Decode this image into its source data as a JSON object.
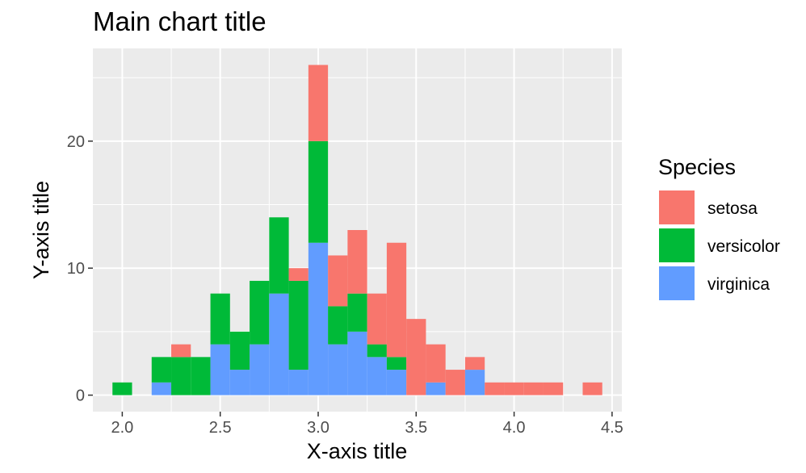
{
  "chart_data": {
    "type": "bar",
    "subtype": "stacked-histogram",
    "title": "Main chart title",
    "xlabel": "X-axis title",
    "ylabel": "Y-axis title",
    "xlim": [
      1.85,
      4.55
    ],
    "ylim": [
      -1.3,
      27.3
    ],
    "x_ticks": [
      2.0,
      2.5,
      3.0,
      3.5,
      4.0,
      4.5
    ],
    "x_tick_labels": [
      "2.0",
      "2.5",
      "3.0",
      "3.5",
      "4.0",
      "4.5"
    ],
    "y_ticks": [
      0,
      10,
      20
    ],
    "y_tick_labels": [
      "0",
      "10",
      "20"
    ],
    "grid": true,
    "background": "#EBEBEB",
    "bin_width": 0.1,
    "bin_centers": [
      2.0,
      2.1,
      2.2,
      2.3,
      2.4,
      2.5,
      2.6,
      2.7,
      2.8,
      2.9,
      3.0,
      3.1,
      3.2,
      3.3,
      3.4,
      3.5,
      3.6,
      3.7,
      3.8,
      3.9,
      4.0,
      4.1,
      4.2,
      4.3,
      4.4
    ],
    "series": [
      {
        "name": "virginica",
        "color": "#619CFF",
        "values": [
          0,
          0,
          1,
          0,
          0,
          4,
          2,
          4,
          8,
          2,
          12,
          4,
          5,
          3,
          2,
          0,
          1,
          0,
          2,
          0,
          0,
          0,
          0,
          0,
          0
        ]
      },
      {
        "name": "versicolor",
        "color": "#00BA38",
        "values": [
          1,
          0,
          2,
          3,
          3,
          4,
          3,
          5,
          6,
          7,
          8,
          3,
          3,
          1,
          1,
          0,
          0,
          0,
          0,
          0,
          0,
          0,
          0,
          0,
          0
        ]
      },
      {
        "name": "setosa",
        "color": "#F8766D",
        "values": [
          0,
          0,
          0,
          1,
          0,
          0,
          0,
          0,
          0,
          1,
          6,
          4,
          5,
          4,
          9,
          6,
          3,
          2,
          1,
          1,
          1,
          1,
          1,
          0,
          1
        ]
      }
    ],
    "legend": {
      "title": "Species",
      "position": "right",
      "entries": [
        {
          "label": "setosa",
          "color": "#F8766D"
        },
        {
          "label": "versicolor",
          "color": "#00BA38"
        },
        {
          "label": "virginica",
          "color": "#619CFF"
        }
      ]
    }
  }
}
